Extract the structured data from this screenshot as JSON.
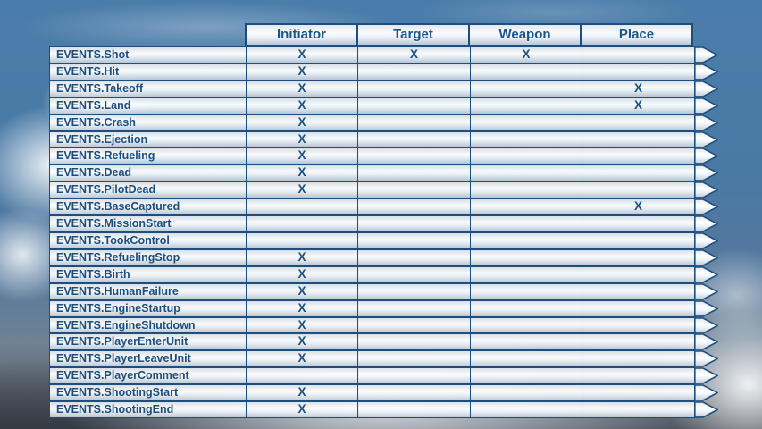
{
  "chart_data": {
    "type": "table",
    "title": "",
    "columns": [
      "Initiator",
      "Target",
      "Weapon",
      "Place"
    ],
    "mark": "X",
    "rows": [
      {
        "label": "EVENTS.Shot",
        "marks": [
          true,
          true,
          true,
          false
        ]
      },
      {
        "label": "EVENTS.Hit",
        "marks": [
          true,
          false,
          false,
          false
        ]
      },
      {
        "label": "EVENTS.Takeoff",
        "marks": [
          true,
          false,
          false,
          true
        ]
      },
      {
        "label": "EVENTS.Land",
        "marks": [
          true,
          false,
          false,
          true
        ]
      },
      {
        "label": "EVENTS.Crash",
        "marks": [
          true,
          false,
          false,
          false
        ]
      },
      {
        "label": "EVENTS.Ejection",
        "marks": [
          true,
          false,
          false,
          false
        ]
      },
      {
        "label": "EVENTS.Refueling",
        "marks": [
          true,
          false,
          false,
          false
        ]
      },
      {
        "label": "EVENTS.Dead",
        "marks": [
          true,
          false,
          false,
          false
        ]
      },
      {
        "label": "EVENTS.PilotDead",
        "marks": [
          true,
          false,
          false,
          false
        ]
      },
      {
        "label": "EVENTS.BaseCaptured",
        "marks": [
          false,
          false,
          false,
          true
        ]
      },
      {
        "label": "EVENTS.MissionStart",
        "marks": [
          false,
          false,
          false,
          false
        ]
      },
      {
        "label": "EVENTS.TookControl",
        "marks": [
          false,
          false,
          false,
          false
        ]
      },
      {
        "label": "EVENTS.RefuelingStop",
        "marks": [
          true,
          false,
          false,
          false
        ]
      },
      {
        "label": "EVENTS.Birth",
        "marks": [
          true,
          false,
          false,
          false
        ]
      },
      {
        "label": "EVENTS.HumanFailure",
        "marks": [
          true,
          false,
          false,
          false
        ]
      },
      {
        "label": "EVENTS.EngineStartup",
        "marks": [
          true,
          false,
          false,
          false
        ]
      },
      {
        "label": "EVENTS.EngineShutdown",
        "marks": [
          true,
          false,
          false,
          false
        ]
      },
      {
        "label": "EVENTS.PlayerEnterUnit",
        "marks": [
          true,
          false,
          false,
          false
        ]
      },
      {
        "label": "EVENTS.PlayerLeaveUnit",
        "marks": [
          true,
          false,
          false,
          false
        ]
      },
      {
        "label": "EVENTS.PlayerComment",
        "marks": [
          false,
          false,
          false,
          false
        ]
      },
      {
        "label": "EVENTS.ShootingStart",
        "marks": [
          true,
          false,
          false,
          false
        ]
      },
      {
        "label": "EVENTS.ShootingEnd",
        "marks": [
          true,
          false,
          false,
          false
        ]
      }
    ],
    "layout": {
      "legend": false,
      "grid": true
    }
  },
  "colors": {
    "bar_border": "#1e4e7e",
    "text_navy": "#1b4d7e",
    "header_text": "#1b5486",
    "sky_blue": "#4a7aa6"
  }
}
